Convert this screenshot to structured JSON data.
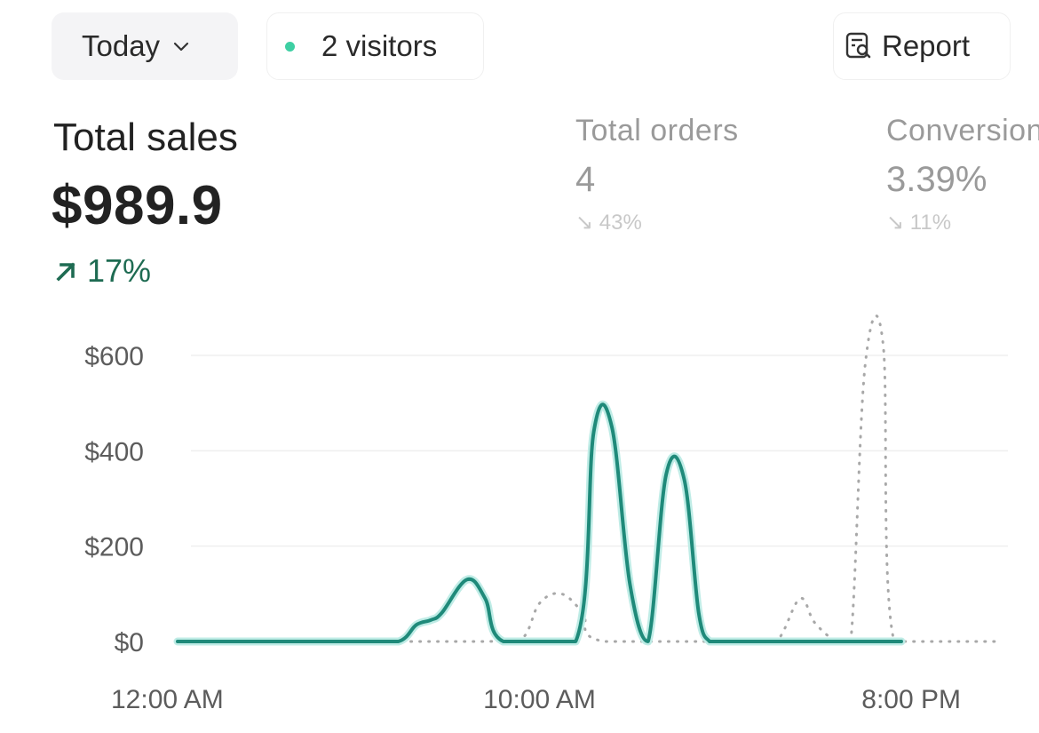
{
  "toolbar": {
    "date_range_label": "Today",
    "visitors_label": "2 visitors",
    "report_label": "Report",
    "live_dot_color": "#3ecfa3",
    "icons": [
      "chevron-down-icon",
      "live-dot-icon",
      "report-icon"
    ]
  },
  "metrics": {
    "total_sales": {
      "label": "Total sales",
      "value": "$989.9",
      "change": "17%",
      "trend": "up",
      "color": "#1e6b52"
    },
    "total_orders": {
      "label": "Total orders",
      "value": "4",
      "change": "↘ 43%",
      "trend": "down"
    },
    "conversion": {
      "label": "Conversion",
      "value": "3.39%",
      "change": "↘ 11%",
      "trend": "down"
    }
  },
  "chart_data": {
    "type": "line",
    "ylim": [
      0,
      600
    ],
    "y_ticks": [
      "$600",
      "$400",
      "$200",
      "$0"
    ],
    "y_tick_values": [
      600,
      400,
      200,
      0
    ],
    "x_tick_labels": [
      "12:00 AM",
      "10:00 AM",
      "8:00 PM"
    ],
    "x_tick_hours": [
      0,
      10,
      20
    ],
    "grid": true,
    "series": [
      {
        "style": "solid",
        "color": "#1f8a7a",
        "hours": [
          0,
          5,
          6.1,
          6.6,
          7,
          7.3,
          8,
          8.5,
          9,
          11,
          11.5,
          12,
          12.5,
          13,
          13.5,
          14,
          14.4,
          14.7,
          15,
          15.5,
          16,
          16.3,
          16.7,
          17.3,
          20
        ],
        "values": [
          0,
          0,
          0,
          35,
          45,
          60,
          130,
          90,
          0,
          0,
          440,
          450,
          120,
          0,
          350,
          340,
          60,
          0,
          0,
          0,
          0,
          0,
          0,
          0,
          0
        ]
      },
      {
        "style": "dotted",
        "color": "#a8a8a8",
        "hours": [
          6.2,
          8.5,
          9.5,
          10,
          10.6,
          11.2,
          11.8,
          16,
          16.6,
          17.2,
          17.6,
          18.2,
          18.6,
          19,
          19.5,
          19.8,
          21.5,
          22.6
        ],
        "values": [
          0,
          0,
          5,
          80,
          100,
          60,
          0,
          0,
          5,
          90,
          40,
          0,
          0,
          580,
          620,
          0,
          0,
          0
        ]
      }
    ]
  }
}
